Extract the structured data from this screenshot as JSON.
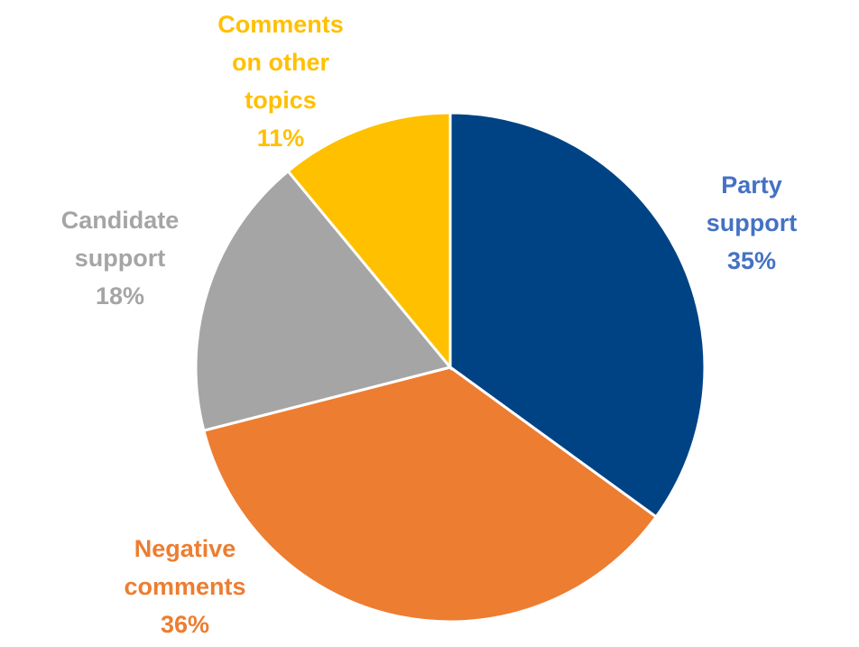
{
  "chart_data": {
    "type": "pie",
    "categories": [
      "Party support",
      "Negative comments",
      "Candidate support",
      "Comments on other topics"
    ],
    "values": [
      35,
      36,
      18,
      11
    ],
    "value_labels": [
      "35%",
      "36%",
      "18%",
      "11%"
    ],
    "colors": [
      "#004385",
      "#ed7d31",
      "#a5a5a5",
      "#ffc000"
    ],
    "label_colors": [
      "#4472c4",
      "#ed7d31",
      "#a5a5a5",
      "#ffc000"
    ]
  }
}
